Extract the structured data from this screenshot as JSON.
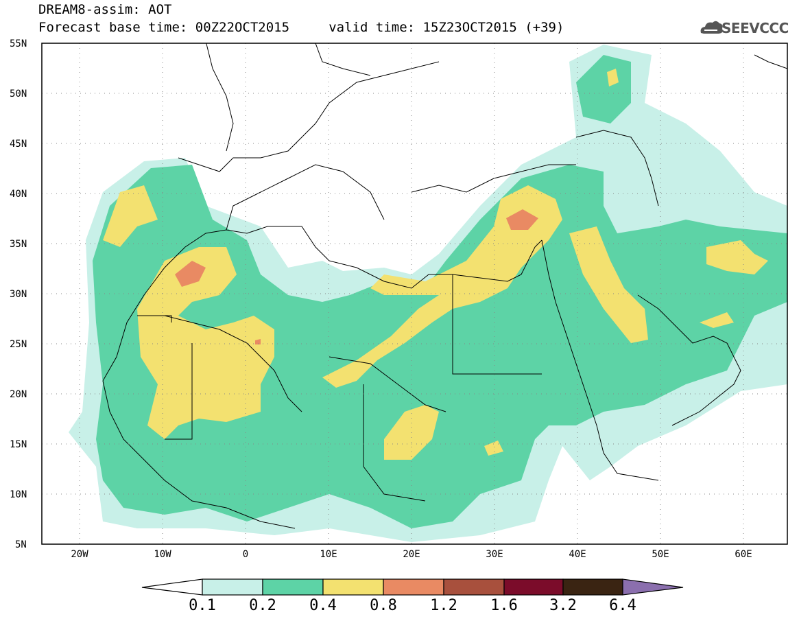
{
  "header": {
    "title_line1": "DREAM8-assim: AOT",
    "title_line2": "Forecast base time: 00Z22OCT2015     valid time: 15Z23OCT2015 (+39)",
    "logo_text": "SEEVCCC"
  },
  "map": {
    "lat_labels": [
      "55N",
      "50N",
      "45N",
      "40N",
      "35N",
      "30N",
      "25N",
      "20N",
      "15N",
      "10N",
      "5N"
    ],
    "lon_labels": [
      "20W",
      "10W",
      "0",
      "10E",
      "20E",
      "30E",
      "40E",
      "50E",
      "60E"
    ],
    "lat_range": [
      5,
      55
    ],
    "lon_range": [
      -25,
      65
    ],
    "grid": "dotted"
  },
  "colorbar": {
    "labels": [
      "0.1",
      "0.2",
      "0.4",
      "0.8",
      "1.2",
      "1.6",
      "3.2",
      "6.4"
    ],
    "colors": [
      "#ffffff",
      "#c8f0e8",
      "#5dd3a6",
      "#f3e170",
      "#e98a63",
      "#a8503d",
      "#7b0c2a",
      "#3a2412",
      "#8b6fae"
    ]
  },
  "colors": {
    "aot_01_02": "#c8f0e8",
    "aot_02_04": "#5dd3a6",
    "aot_04_08": "#f3e170",
    "aot_08_12": "#e98a63",
    "coast": "#000000"
  }
}
